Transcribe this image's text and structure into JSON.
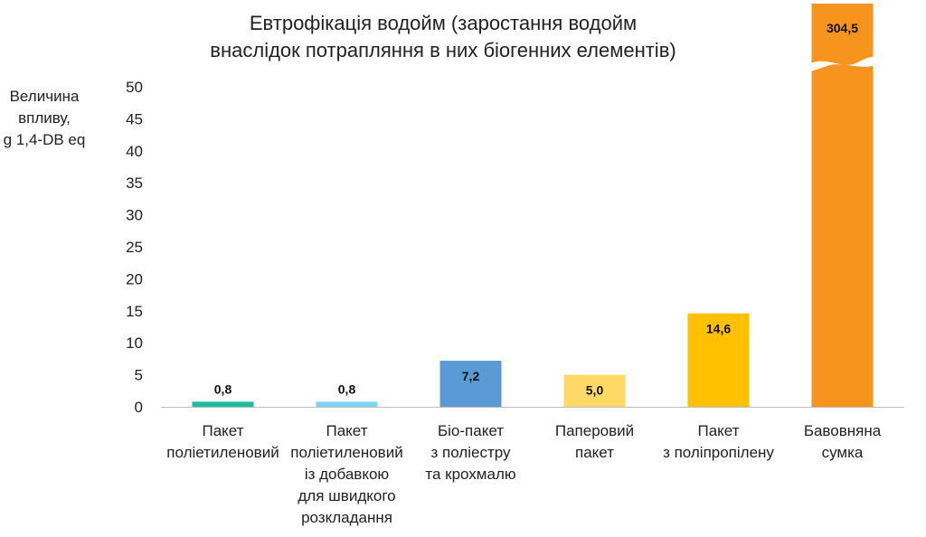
{
  "chart_data": {
    "type": "bar",
    "title": "Евтрофікація водойм (заростання водойм внаслідок потрапляння в них біогенних елементів)",
    "title_lines": [
      "Евтрофікація водойм (заростання водойм",
      "внаслідок потрапляння в них біогенних елементів)"
    ],
    "ylabel": "Величина впливу, g 1,4-DB eq",
    "ylabel_lines": [
      "Величина",
      "впливу,",
      "g 1,4-DB eq"
    ],
    "xlabel": "",
    "ylim": [
      0,
      50
    ],
    "yticks": [
      0,
      5,
      10,
      15,
      20,
      25,
      30,
      35,
      40,
      45,
      50
    ],
    "axis_break": true,
    "grid": false,
    "legend": "none",
    "categories": [
      "Пакет поліетиленовий",
      "Пакет поліетиленовий із добавкою для швидкого розкладання",
      "Біо-пакет з поліестру та крохмалю",
      "Паперовий пакет",
      "Пакет з поліпропілену",
      "Бавовняна сумка"
    ],
    "category_lines": [
      [
        "Пакет",
        "поліетиленовий"
      ],
      [
        "Пакет",
        "поліетиленовий",
        "із добавкою",
        "для швидкого",
        "розкладання"
      ],
      [
        "Біо-пакет",
        "з поліестру",
        "та крохмалю"
      ],
      [
        "Паперовий",
        "пакет"
      ],
      [
        "Пакет",
        "з поліпропілену"
      ],
      [
        "Бавовняна",
        "сумка"
      ]
    ],
    "values": [
      0.8,
      0.8,
      7.2,
      5.0,
      14.6,
      304.5
    ],
    "value_labels": [
      "0,8",
      "0,8",
      "7,2",
      "5,0",
      "14,6",
      "304,5"
    ],
    "colors": [
      "#1bbc9b",
      "#7fd4f2",
      "#5b9bd5",
      "#ffd966",
      "#ffc000",
      "#f7941d"
    ]
  }
}
